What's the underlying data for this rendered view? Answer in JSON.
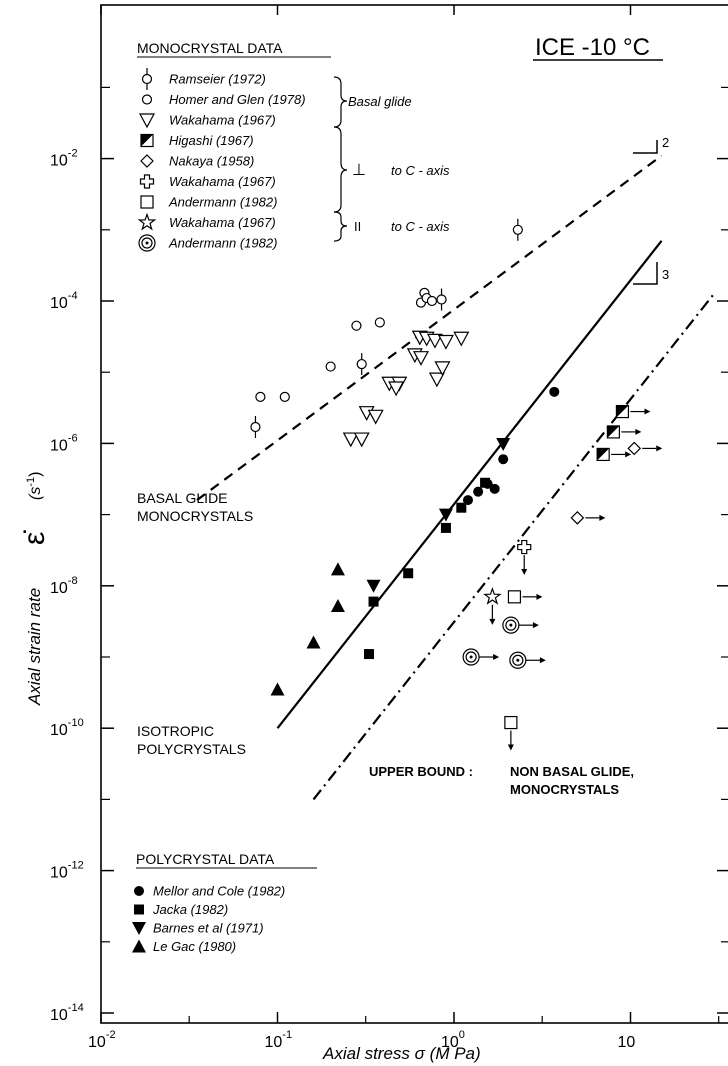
{
  "chart_data": {
    "type": "scatter",
    "title": "ICE -10 °C",
    "xlabel": "Axial stress",
    "xlabel_symbol": "σ",
    "xlabel_unit": "(M Pa)",
    "ylabel": "Axial strain rate",
    "ylabel_symbol": "ε̇",
    "ylabel_unit": "(s",
    "ylabel_unit_exp": "-1",
    "ylabel_unit_close": ")",
    "x_scale": "log",
    "y_scale": "log",
    "xlim": [
      0.01,
      30
    ],
    "ylim": [
      1e-14,
      0.1
    ],
    "grid": false,
    "x_ticks": [
      {
        "value": 0.01,
        "base": "10",
        "exp": "-2"
      },
      {
        "value": 0.1,
        "base": "10",
        "exp": "-1"
      },
      {
        "value": 1,
        "base": "10",
        "exp": "0"
      },
      {
        "value": 10,
        "base": "10",
        "exp": ""
      }
    ],
    "y_ticks": [
      {
        "value": 1e-14,
        "base": "10",
        "exp": "-14"
      },
      {
        "value": 1e-12,
        "base": "10",
        "exp": "-12"
      },
      {
        "value": 1e-10,
        "base": "10",
        "exp": "-10"
      },
      {
        "value": 1e-08,
        "base": "10",
        "exp": "-8"
      },
      {
        "value": 1e-06,
        "base": "10",
        "exp": "-6"
      },
      {
        "value": 0.0001,
        "base": "10",
        "exp": "-4"
      },
      {
        "value": 0.01,
        "base": "10",
        "exp": "-2"
      }
    ],
    "legends": {
      "monocrystal": {
        "heading": "MONOCRYSTAL DATA",
        "entries": [
          {
            "marker": "circle-bar",
            "label": "Ramseier (1972)"
          },
          {
            "marker": "circle",
            "label": "Homer and Glen (1978)"
          },
          {
            "marker": "triangle-down-open",
            "label": "Wakahama (1967)"
          },
          {
            "marker": "square-half",
            "label": "Higashi (1967)"
          },
          {
            "marker": "diamond-open",
            "label": "Nakaya (1958)"
          },
          {
            "marker": "cross-open",
            "label": "Wakahama (1967)"
          },
          {
            "marker": "square-open",
            "label": "Andermann (1982)"
          },
          {
            "marker": "star-open",
            "label": "Wakahama (1967)"
          },
          {
            "marker": "double-circle",
            "label": "Andermann (1982)"
          }
        ],
        "groups": [
          {
            "label": "Basal glide",
            "symbol": ""
          },
          {
            "label": "to C - axis",
            "symbol": "⊥"
          },
          {
            "label": "to C - axis",
            "symbol": "II"
          }
        ]
      },
      "polycrystal": {
        "heading": "POLYCRYSTAL DATA",
        "entries": [
          {
            "marker": "circle-filled",
            "label": "Mellor and Cole (1982)"
          },
          {
            "marker": "square-filled",
            "label": "Jacka (1982)"
          },
          {
            "marker": "triangle-down-filled",
            "label": "Barnes et al (1971)"
          },
          {
            "marker": "triangle-up-filled",
            "label": "Le Gac (1980)"
          }
        ]
      }
    },
    "annotations": {
      "basal_line_1": "BASAL GLIDE",
      "basal_line_2": "MONOCRYSTALS",
      "iso_line_1": "ISOTROPIC",
      "iso_line_2": "POLYCRYSTALS",
      "upper_bound": "UPPER BOUND :",
      "nonbasal_line_1": "NON BASAL GLIDE,",
      "nonbasal_line_2": "MONOCRYSTALS",
      "slope_2": "2",
      "slope_3": "3"
    },
    "lines": [
      {
        "name": "basal",
        "style": "dashed",
        "x": [
          0.035,
          15
        ],
        "y": [
          1.6e-07,
          0.011
        ]
      },
      {
        "name": "isotropic",
        "style": "solid",
        "x": [
          0.1,
          15
        ],
        "y": [
          1e-10,
          0.0007
        ]
      },
      {
        "name": "nonbasal",
        "style": "dashdot",
        "x": [
          0.16,
          30
        ],
        "y": [
          1e-11,
          0.00013
        ]
      }
    ],
    "series": [
      {
        "marker": "circle-bar",
        "points": [
          [
            0.075,
            1.7e-06
          ],
          [
            0.3,
            1.3e-05
          ],
          [
            0.85,
            0.000105
          ],
          [
            2.3,
            0.001
          ]
        ]
      },
      {
        "marker": "circle",
        "points": [
          [
            0.08,
            4.5e-06
          ],
          [
            0.11,
            4.5e-06
          ],
          [
            0.2,
            1.2e-05
          ],
          [
            0.28,
            4.5e-05
          ],
          [
            0.38,
            5e-05
          ],
          [
            0.65,
            9.5e-05
          ],
          [
            0.68,
            0.00013
          ],
          [
            0.7,
            0.00011
          ],
          [
            0.75,
            0.0001
          ]
        ]
      },
      {
        "marker": "triangle-down-open",
        "points": [
          [
            0.26,
            1.15e-06
          ],
          [
            0.3,
            1.15e-06
          ],
          [
            0.32,
            2.7e-06
          ],
          [
            0.36,
            2.4e-06
          ],
          [
            0.43,
            7e-06
          ],
          [
            0.49,
            7e-06
          ],
          [
            0.47,
            6e-06
          ],
          [
            0.6,
            1.75e-05
          ],
          [
            0.64,
            3.1e-05
          ],
          [
            0.65,
            1.6e-05
          ],
          [
            0.7,
            3e-05
          ],
          [
            0.78,
            2.8e-05
          ],
          [
            0.9,
            2.7e-05
          ],
          [
            1.1,
            3e-05
          ],
          [
            0.8,
            8e-06
          ],
          [
            0.86,
            1.15e-05
          ]
        ]
      },
      {
        "marker": "square-half",
        "points": [
          [
            7,
            7e-07
          ],
          [
            8,
            1.45e-06
          ],
          [
            9,
            2.8e-06
          ]
        ]
      },
      {
        "marker": "diamond-open",
        "points": [
          [
            10.5,
            8.5e-07
          ],
          [
            5,
            9e-08
          ]
        ]
      },
      {
        "marker": "cross-open",
        "points": [
          [
            2.5,
            3.5e-08
          ]
        ]
      },
      {
        "marker": "square-open",
        "points": [
          [
            2.2,
            7e-09
          ],
          [
            2.1,
            1.2e-10
          ]
        ]
      },
      {
        "marker": "star-open",
        "points": [
          [
            1.65,
            7e-09
          ]
        ]
      },
      {
        "marker": "double-circle",
        "points": [
          [
            1.25,
            1e-09
          ],
          [
            2.1,
            2.8e-09
          ],
          [
            2.3,
            9e-10
          ]
        ]
      },
      {
        "marker": "circle-filled",
        "points": [
          [
            1.2,
            1.6e-07
          ],
          [
            1.37,
            2.1e-07
          ],
          [
            1.55,
            2.7e-07
          ],
          [
            1.7,
            2.3e-07
          ],
          [
            1.9,
            6e-07
          ],
          [
            3.7,
            5.3e-06
          ]
        ]
      },
      {
        "marker": "square-filled",
        "points": [
          [
            0.35,
            6e-09
          ],
          [
            0.33,
            1.1e-09
          ],
          [
            0.55,
            1.5e-08
          ],
          [
            0.9,
            6.5e-08
          ],
          [
            1.1,
            1.25e-07
          ],
          [
            1.5,
            2.8e-07
          ]
        ]
      },
      {
        "marker": "triangle-down-filled",
        "points": [
          [
            0.35,
            1e-08
          ],
          [
            0.9,
            1e-07
          ],
          [
            1.9,
            9.8e-07
          ]
        ]
      },
      {
        "marker": "triangle-up-filled",
        "points": [
          [
            0.1,
            3.5e-10
          ],
          [
            0.16,
            1.6e-09
          ],
          [
            0.22,
            5.2e-09
          ],
          [
            0.22,
            1.7e-08
          ]
        ]
      }
    ]
  }
}
